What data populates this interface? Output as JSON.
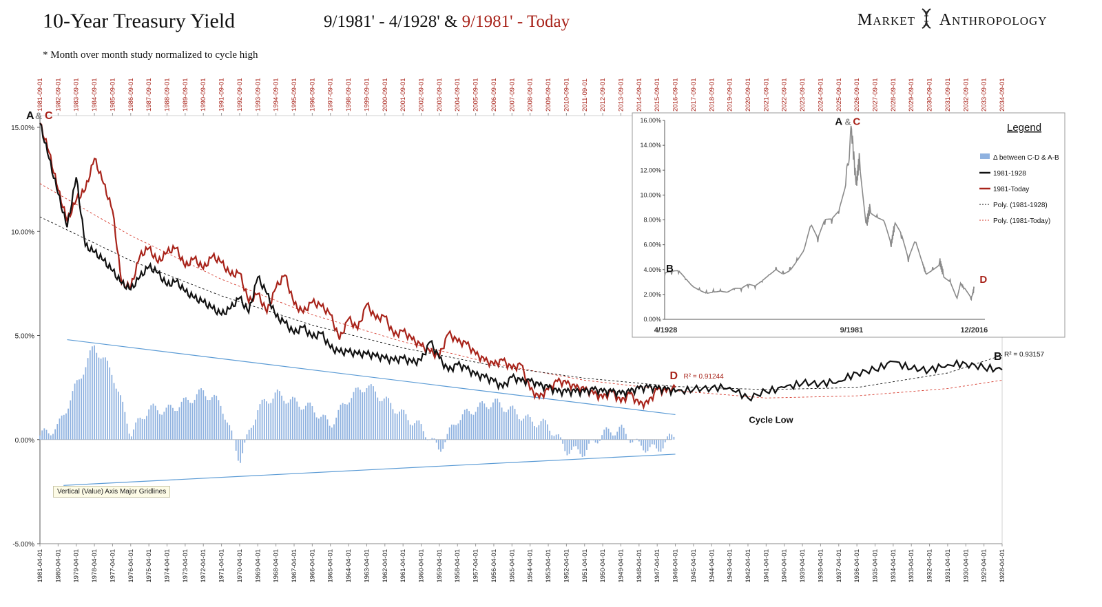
{
  "header": {
    "title": "10-Year Treasury Yield",
    "subtitle_black": "9/1981' - 4/1928' &",
    "subtitle_red": "9/1981' - Today",
    "note": "* Month over month study normalized to cycle high",
    "brand_left": "Market",
    "brand_right": "Anthropology"
  },
  "tooltip": "Vertical (Value) Axis Major Gridlines",
  "colors": {
    "black_series": "#111111",
    "red_series": "#a8231a",
    "delta_bars": "#8fb2e0",
    "channel_lines": "#5b9bd5",
    "inset_series": "#8a8a8a"
  },
  "chart_data": [
    {
      "type": "line",
      "name": "main",
      "y_axis": {
        "min": -5,
        "max": 15,
        "ticks": [
          "15.00%",
          "10.00%",
          "5.00%",
          "0.00%",
          "-5.00%"
        ],
        "tick_values": [
          15,
          10,
          5,
          0,
          -5
        ]
      },
      "x_top_labels": [
        "1981-09-01",
        "1982-09-01",
        "1983-09-01",
        "1984-09-01",
        "1985-09-01",
        "1986-09-01",
        "1987-09-01",
        "1988-09-01",
        "1989-09-01",
        "1990-09-01",
        "1991-09-01",
        "1992-09-01",
        "1993-09-01",
        "1994-09-01",
        "1995-09-01",
        "1996-09-01",
        "1997-09-01",
        "1998-09-01",
        "1999-09-01",
        "2000-09-01",
        "2001-09-01",
        "2002-09-01",
        "2003-09-01",
        "2004-09-01",
        "2005-09-01",
        "2006-09-01",
        "2007-09-01",
        "2008-09-01",
        "2009-09-01",
        "2010-09-01",
        "2011-09-01",
        "2012-09-01",
        "2013-09-01",
        "2014-09-01",
        "2015-09-01",
        "2016-09-01",
        "2017-09-01",
        "2018-09-01",
        "2019-09-01",
        "2020-09-01",
        "2021-09-01",
        "2022-09-01",
        "2023-09-01",
        "2024-09-01",
        "2025-09-01",
        "2026-09-01",
        "2027-09-01",
        "2028-09-01",
        "2029-09-01",
        "2030-09-01",
        "2031-09-01",
        "2032-09-01",
        "2033-09-01",
        "2034-09-01"
      ],
      "x_bottom_labels": [
        "1981-04-01",
        "1980-04-01",
        "1979-04-01",
        "1978-04-01",
        "1977-04-01",
        "1976-04-01",
        "1975-04-01",
        "1974-04-01",
        "1973-04-01",
        "1972-04-01",
        "1971-04-01",
        "1970-04-01",
        "1969-04-01",
        "1968-04-01",
        "1967-04-01",
        "1966-04-01",
        "1965-04-01",
        "1964-04-01",
        "1963-04-01",
        "1962-04-01",
        "1961-04-01",
        "1960-04-01",
        "1959-04-01",
        "1958-04-01",
        "1957-04-01",
        "1956-04-01",
        "1955-04-01",
        "1954-04-01",
        "1953-04-01",
        "1952-04-01",
        "1951-04-01",
        "1950-04-01",
        "1949-04-01",
        "1948-04-01",
        "1947-04-01",
        "1946-04-01",
        "1945-04-01",
        "1944-04-01",
        "1943-04-01",
        "1942-04-01",
        "1941-04-01",
        "1940-04-01",
        "1939-04-01",
        "1938-04-01",
        "1937-04-01",
        "1936-04-01",
        "1935-04-01",
        "1934-04-01",
        "1933-04-01",
        "1932-04-01",
        "1931-04-01",
        "1930-04-01",
        "1929-04-01",
        "1928-04-01"
      ],
      "series": [
        {
          "name": "1981-1928",
          "x": [
            0,
            0.5,
            1,
            1.5,
            2,
            2.5,
            3,
            3.5,
            4,
            4.5,
            5,
            5.5,
            6,
            6.5,
            7,
            7.5,
            8,
            8.5,
            9,
            9.5,
            10,
            10.5,
            11,
            11.5,
            12,
            12.5,
            13,
            13.5,
            14,
            14.5,
            15,
            15.5,
            16,
            16.5,
            17,
            17.5,
            18,
            18.5,
            19,
            19.5,
            20,
            20.5,
            21,
            21.5,
            22,
            22.5,
            23,
            23.5,
            24,
            24.5,
            25,
            25.5,
            26,
            26.5,
            27,
            27.5,
            28,
            28.5,
            29,
            29.5,
            30,
            30.5,
            31,
            31.5,
            32,
            32.5,
            33,
            33.5,
            34,
            34.5,
            35,
            36,
            37,
            38,
            39,
            40,
            41,
            42,
            43,
            44,
            45,
            46,
            47,
            48,
            49,
            50,
            51,
            52,
            53
          ],
          "y": [
            15.2,
            13.5,
            11.8,
            10.2,
            12.6,
            9.3,
            9.0,
            8.6,
            8.1,
            7.5,
            7.2,
            7.8,
            8.3,
            8.0,
            7.4,
            7.6,
            7.1,
            6.8,
            6.6,
            6.3,
            6.0,
            6.3,
            6.8,
            6.1,
            7.8,
            7.0,
            5.9,
            5.6,
            5.1,
            5.4,
            4.9,
            5.1,
            4.4,
            4.2,
            4.2,
            4.1,
            4.1,
            4.0,
            3.9,
            3.8,
            3.9,
            3.7,
            3.8,
            4.7,
            3.9,
            3.3,
            3.6,
            3.4,
            3.1,
            3.0,
            2.8,
            2.5,
            3.0,
            2.8,
            2.8,
            2.6,
            2.5,
            2.3,
            2.3,
            2.3,
            2.3,
            2.4,
            2.3,
            2.3,
            2.2,
            2.3,
            2.45,
            2.5,
            2.45,
            2.4,
            2.3,
            2.4,
            2.5,
            2.5,
            2.0,
            2.3,
            2.5,
            2.7,
            2.7,
            2.8,
            3.2,
            3.35,
            3.75,
            3.4,
            3.35,
            3.6,
            3.65,
            3.45,
            3.35
          ]
        },
        {
          "name": "1981-Today",
          "x": [
            0,
            0.5,
            1,
            1.5,
            2,
            2.5,
            3,
            3.5,
            4,
            4.5,
            5,
            5.5,
            6,
            6.5,
            7,
            7.5,
            8,
            8.5,
            9,
            9.5,
            10,
            10.5,
            11,
            11.5,
            12,
            12.5,
            13,
            13.5,
            14,
            14.5,
            15,
            15.5,
            16,
            16.5,
            17,
            17.5,
            18,
            18.5,
            19,
            19.5,
            20,
            20.5,
            21,
            21.5,
            22,
            22.5,
            23,
            23.5,
            24,
            24.5,
            25,
            25.5,
            26,
            26.5,
            27,
            27.5,
            28,
            28.5,
            29,
            29.5,
            30,
            30.5,
            31,
            31.5,
            32,
            32.5,
            33,
            33.5,
            34,
            34.5,
            35
          ],
          "y": [
            15.2,
            13.8,
            12.0,
            10.5,
            11.5,
            12.0,
            13.5,
            12.3,
            11.0,
            7.5,
            7.3,
            8.8,
            9.2,
            8.5,
            9.0,
            9.2,
            8.3,
            8.7,
            8.2,
            8.8,
            8.5,
            7.9,
            8.0,
            6.6,
            7.0,
            6.1,
            7.3,
            7.9,
            6.5,
            6.1,
            6.6,
            6.4,
            6.0,
            4.8,
            5.8,
            5.3,
            6.5,
            5.8,
            5.9,
            5.0,
            5.2,
            4.8,
            4.5,
            4.2,
            4.0,
            5.1,
            4.7,
            4.6,
            4.1,
            3.8,
            3.6,
            3.8,
            3.4,
            3.6,
            2.4,
            2.0,
            2.4,
            2.8,
            2.7,
            2.5,
            2.4,
            2.2,
            2.0,
            2.3,
            1.8,
            2.2,
            1.7,
            1.75,
            2.4,
            2.3,
            2.5
          ]
        },
        {
          "name": "Poly. (1981-1928)",
          "style": "dashed",
          "x": [
            0,
            5,
            10,
            15,
            20,
            25,
            30,
            35,
            40,
            45,
            50,
            53
          ],
          "y": [
            10.7,
            8.6,
            6.9,
            5.5,
            4.4,
            3.55,
            2.95,
            2.55,
            2.4,
            2.5,
            3.2,
            4.05
          ]
        },
        {
          "name": "Poly. (1981-Today)",
          "style": "dashed",
          "x": [
            0,
            5,
            10,
            15,
            20,
            25,
            30,
            35,
            40,
            45,
            50,
            53
          ],
          "y": [
            12.3,
            9.8,
            7.7,
            6.0,
            4.7,
            3.65,
            2.85,
            2.35,
            2.0,
            2.1,
            2.45,
            2.85
          ]
        }
      ],
      "delta_bars": {
        "name": "Δ between C-D & A-B",
        "x": [
          0,
          1,
          2,
          3,
          4,
          5,
          6,
          7,
          8,
          9,
          10,
          11,
          12,
          13,
          14,
          15,
          16,
          17,
          18,
          19,
          20,
          21,
          22,
          23,
          24,
          25,
          26,
          27,
          28,
          29,
          30,
          31,
          32,
          33,
          34,
          35
        ],
        "y": [
          0.2,
          0.6,
          2.6,
          4.5,
          3.2,
          0.3,
          1.5,
          1.4,
          1.8,
          2.3,
          1.7,
          -1.0,
          1.5,
          2.2,
          1.8,
          1.5,
          0.7,
          2.0,
          2.6,
          1.9,
          1.2,
          0.6,
          -0.5,
          1.0,
          1.5,
          1.8,
          1.4,
          0.9,
          0.7,
          -0.5,
          -0.6,
          0.3,
          0.5,
          -0.3,
          -0.5,
          0.3
        ]
      },
      "labels": {
        "a_c": [
          "A",
          "&",
          "C"
        ],
        "d": "D",
        "b": "B",
        "cycle_low": "Cycle Low",
        "r2_red": "R² = 0.91244",
        "r2_black": "R² = 0.93157"
      }
    },
    {
      "type": "line",
      "name": "inset",
      "y_axis": {
        "min": 0,
        "max": 16,
        "ticks": [
          "16.00%",
          "14.00%",
          "12.00%",
          "10.00%",
          "8.00%",
          "6.00%",
          "4.00%",
          "2.00%",
          "0.00%"
        ],
        "tick_values": [
          16,
          14,
          12,
          10,
          8,
          6,
          4,
          2,
          0
        ]
      },
      "x_labels": [
        "4/1928",
        "9/1981",
        "12/2016"
      ],
      "x_label_years": [
        1928.3,
        1981.7,
        2016.9
      ],
      "x_range": [
        1928,
        2020
      ],
      "series": [
        {
          "name": "US 10Y",
          "x": [
            1928,
            1930,
            1932,
            1934,
            1936,
            1938,
            1940,
            1942,
            1944,
            1946,
            1948,
            1950,
            1952,
            1954,
            1956,
            1958,
            1960,
            1962,
            1964,
            1966,
            1968,
            1970,
            1972,
            1974,
            1976,
            1978,
            1980,
            1981.7,
            1983,
            1984,
            1986,
            1987,
            1989,
            1991,
            1993,
            1994,
            1996,
            1998,
            2000,
            2002,
            2003,
            2005,
            2007,
            2008,
            2010,
            2012,
            2013,
            2014,
            2016,
            2016.9
          ],
          "y": [
            3.5,
            3.6,
            3.7,
            3.2,
            2.7,
            2.5,
            2.3,
            2.4,
            2.4,
            2.2,
            2.4,
            2.3,
            2.6,
            2.5,
            3.0,
            3.6,
            4.2,
            3.9,
            4.2,
            4.9,
            5.6,
            7.5,
            6.2,
            7.6,
            7.7,
            8.5,
            10.8,
            15.3,
            10.8,
            13.0,
            7.7,
            9.0,
            8.4,
            7.9,
            5.9,
            7.5,
            6.5,
            4.6,
            6.2,
            4.6,
            3.7,
            4.2,
            4.7,
            3.7,
            3.2,
            1.7,
            2.9,
            2.5,
            1.6,
            2.5
          ]
        }
      ],
      "point_labels": {
        "a_c": [
          "A",
          "&",
          "C"
        ],
        "b": "B",
        "d": "D"
      },
      "legend": {
        "title": "Legend",
        "items": [
          {
            "label": "Δ between C-D & A-B",
            "kind": "bar"
          },
          {
            "label": "1981-1928",
            "kind": "line-black"
          },
          {
            "label": "1981-Today",
            "kind": "line-red"
          },
          {
            "label": "Poly. (1981-1928)",
            "kind": "dash-black"
          },
          {
            "label": "Poly. (1981-Today)",
            "kind": "dash-red"
          }
        ]
      }
    }
  ]
}
